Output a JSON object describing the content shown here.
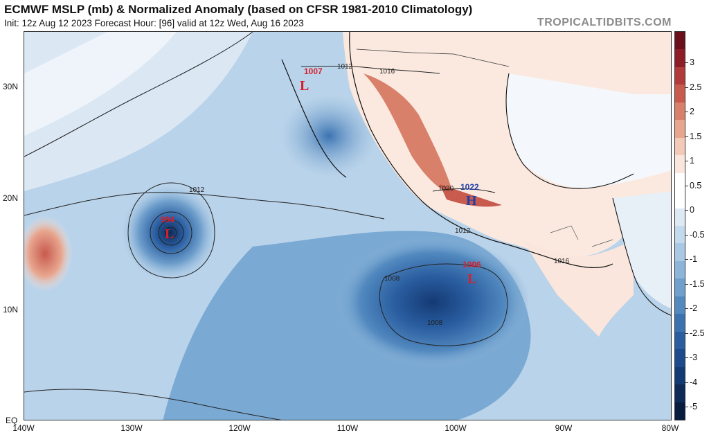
{
  "title": "ECMWF MSLP (mb) & Normalized Anomaly (based on CFSR 1981-2010 Climatology)",
  "subtitle": "Init: 12z Aug 12 2023   Forecast Hour: [96]   valid at 12z Wed, Aug 16 2023",
  "brand": "TROPICALTIDBITS.COM",
  "lat_labels": [
    "30N",
    "20N",
    "10N",
    "EQ"
  ],
  "lon_labels": [
    "140W",
    "130W",
    "120W",
    "110W",
    "100W",
    "90W",
    "80W"
  ],
  "colorbar": {
    "labels": [
      "3",
      "2.5",
      "2",
      "1.5",
      "1",
      "0.5",
      "0",
      "-0.5",
      "-1",
      "-1.5",
      "-2",
      "-2.5",
      "-3",
      "-4",
      "-5"
    ],
    "colors": [
      "#6b0f1a",
      "#8f1d28",
      "#b23a3a",
      "#c85a4e",
      "#d9806a",
      "#e8a68f",
      "#f3cab8",
      "#fae6dc",
      "#ffffff",
      "#ffffff",
      "#dde9f3",
      "#c3d9ec",
      "#a9c8e3",
      "#8db5d9",
      "#6f9fcc",
      "#5289bf",
      "#3b73b1",
      "#2a5ea1",
      "#1d4a8c",
      "#143a74",
      "#0d2a58",
      "#081c40"
    ]
  },
  "pressure_centers": [
    {
      "type": "L",
      "value": "1007",
      "name": "low-baja"
    },
    {
      "type": "L",
      "value": "994",
      "name": "low-hurricane"
    },
    {
      "type": "H",
      "value": "1022",
      "name": "high-mexico"
    },
    {
      "type": "L",
      "value": "1006",
      "name": "low-east-pacific"
    }
  ],
  "isobar_labels": [
    "1012",
    "1016",
    "1012",
    "1020",
    "1012",
    "1008",
    "1008",
    "1016"
  ],
  "colors": {
    "low": "#d8202a",
    "high": "#1f3fa8",
    "isobar": "#222222",
    "land_neutral": "#ffffff"
  }
}
